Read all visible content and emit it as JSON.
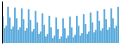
{
  "chart_data": {
    "type": "bar",
    "values": [
      76,
      62,
      65,
      88,
      75,
      61,
      64,
      87,
      74,
      60,
      63,
      86,
      73,
      59,
      62,
      85,
      72,
      58,
      61,
      83,
      69,
      55,
      58,
      80,
      66,
      52,
      55,
      77,
      63,
      50,
      53,
      75,
      61,
      49,
      52,
      74,
      62,
      50,
      53,
      76,
      63,
      51,
      54,
      77,
      65,
      53,
      56,
      79,
      67,
      55,
      58,
      81,
      69,
      57,
      60,
      83,
      71,
      59,
      62,
      85,
      73,
      60,
      63,
      86,
      74,
      62,
      65,
      88
    ],
    "color": "#5aabdc",
    "ylim": [
      44,
      95
    ],
    "tick_labels": false
  }
}
